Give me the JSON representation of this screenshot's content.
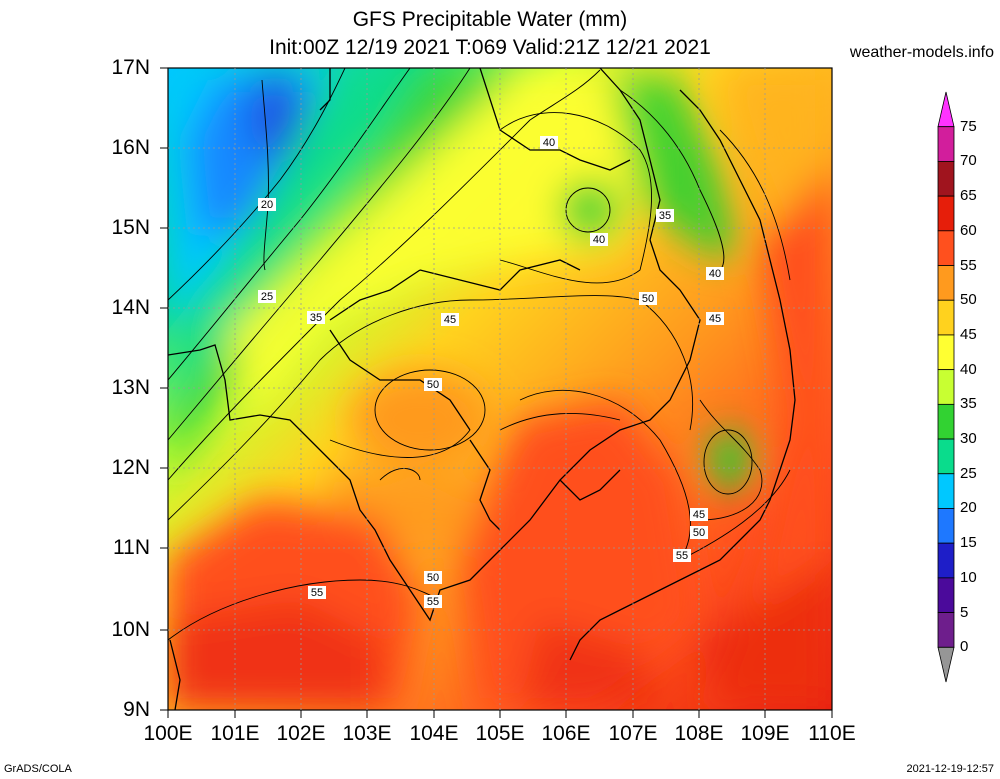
{
  "header": {
    "title_line1": "GFS Precipitable Water (mm)",
    "title_line2": "Init:00Z 12/19 2021 T:069 Valid:21Z 12/21 2021",
    "site": "weather-models.info"
  },
  "axes": {
    "lat_labels": [
      "17N",
      "16N",
      "15N",
      "14N",
      "13N",
      "12N",
      "11N",
      "10N",
      "9N"
    ],
    "lon_labels": [
      "100E",
      "101E",
      "102E",
      "103E",
      "104E",
      "105E",
      "106E",
      "107E",
      "108E",
      "109E",
      "110E"
    ]
  },
  "colorbar": {
    "labels": [
      "75",
      "70",
      "65",
      "60",
      "55",
      "50",
      "45",
      "40",
      "35",
      "30",
      "25",
      "20",
      "15",
      "10",
      "5",
      "0"
    ],
    "colors": [
      "#ff33ff",
      "#d21e9c",
      "#a0141e",
      "#e61e0a",
      "#ff501e",
      "#ff9a1e",
      "#ffd21e",
      "#ffff32",
      "#c8ff32",
      "#32d232",
      "#0adc8c",
      "#00c8ff",
      "#1e78ff",
      "#1e1ec8",
      "#4b0a9b",
      "#6e1e8c",
      "#969696"
    ]
  },
  "contour_labels": [
    "20",
    "25",
    "35",
    "40",
    "40",
    "35",
    "40",
    "45",
    "50",
    "45",
    "50",
    "45",
    "50",
    "55",
    "50",
    "55",
    "55"
  ],
  "footer": {
    "left": "GrADS/COLA",
    "right": "2021-12-19-12:57"
  }
}
